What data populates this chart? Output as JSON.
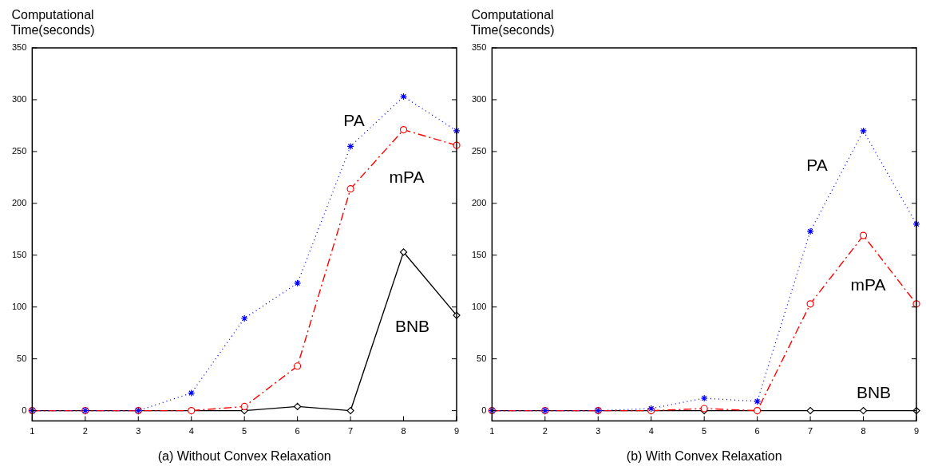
{
  "chart_data": [
    {
      "type": "line",
      "ylabel": "Computational\nTime(seconds)",
      "xlabel": "(a) Without Convex Relaxation",
      "x": [
        1,
        2,
        3,
        4,
        5,
        6,
        7,
        8,
        9
      ],
      "xlim": [
        1,
        9
      ],
      "xticks": [
        1,
        2,
        3,
        4,
        5,
        6,
        7,
        8,
        9
      ],
      "ylim": [
        -10,
        350
      ],
      "yticks": [
        0,
        50,
        100,
        150,
        200,
        250,
        300,
        350
      ],
      "grid": false,
      "legend": false,
      "series": [
        {
          "name": "PA",
          "color": "#0000ff",
          "marker": "cross",
          "line_style": "dotted",
          "values": [
            0,
            0,
            0,
            17,
            89,
            123,
            255,
            303,
            270
          ]
        },
        {
          "name": "mPA",
          "color": "#ff0000",
          "marker": "circle",
          "line_style": "dashed",
          "values": [
            0,
            0,
            0,
            0,
            4,
            43,
            214,
            271,
            256
          ]
        },
        {
          "name": "BNB",
          "color": "#000000",
          "marker": "diamond",
          "line_style": "solid",
          "values": [
            0,
            0,
            0,
            0,
            0,
            4,
            0,
            153,
            92
          ]
        }
      ]
    },
    {
      "type": "line",
      "ylabel": "Computational\nTime(seconds)",
      "xlabel": "(b) With Convex Relaxation",
      "x": [
        1,
        2,
        3,
        4,
        5,
        6,
        7,
        8,
        9
      ],
      "xlim": [
        1,
        9
      ],
      "xticks": [
        1,
        2,
        3,
        4,
        5,
        6,
        7,
        8,
        9
      ],
      "ylim": [
        -10,
        350
      ],
      "yticks": [
        0,
        50,
        100,
        150,
        200,
        250,
        300,
        350
      ],
      "grid": false,
      "legend": false,
      "series": [
        {
          "name": "PA",
          "color": "#0000ff",
          "marker": "cross",
          "line_style": "dotted",
          "values": [
            0,
            0,
            0,
            2,
            12,
            9,
            173,
            270,
            180
          ]
        },
        {
          "name": "mPA",
          "color": "#ff0000",
          "marker": "circle",
          "line_style": "dashed",
          "values": [
            0,
            0,
            0,
            0,
            2,
            0,
            103,
            169,
            103
          ]
        },
        {
          "name": "BNB",
          "color": "#000000",
          "marker": "diamond",
          "line_style": "solid",
          "values": [
            0,
            0,
            0,
            0,
            0,
            0,
            0,
            0,
            0
          ]
        }
      ]
    }
  ]
}
